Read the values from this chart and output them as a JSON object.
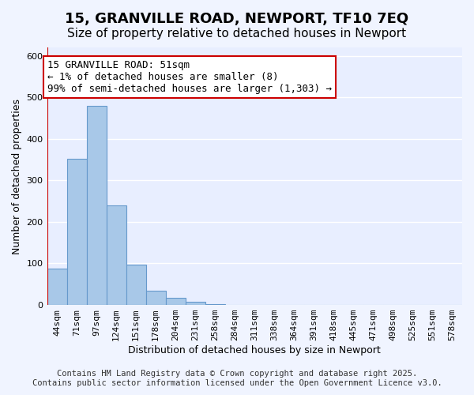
{
  "title": "15, GRANVILLE ROAD, NEWPORT, TF10 7EQ",
  "subtitle": "Size of property relative to detached houses in Newport",
  "xlabel": "Distribution of detached houses by size in Newport",
  "ylabel": "Number of detached properties",
  "bar_values": [
    88,
    352,
    480,
    239,
    97,
    35,
    18,
    7,
    2,
    1,
    0,
    0,
    0,
    0,
    0,
    0,
    0,
    0,
    0,
    0,
    0
  ],
  "bar_labels": [
    "44sqm",
    "71sqm",
    "97sqm",
    "124sqm",
    "151sqm",
    "178sqm",
    "204sqm",
    "231sqm",
    "258sqm",
    "284sqm",
    "311sqm",
    "338sqm",
    "364sqm",
    "391sqm",
    "418sqm",
    "445sqm",
    "471sqm",
    "498sqm",
    "525sqm",
    "551sqm",
    "578sqm"
  ],
  "bar_color": "#a8c8e8",
  "bar_edge_color": "#6699cc",
  "annotation_box_text": "15 GRANVILLE ROAD: 51sqm\n← 1% of detached houses are smaller (8)\n99% of semi-detached houses are larger (1,303) →",
  "annotation_box_color": "#ffffff",
  "annotation_box_edge_color": "#cc0000",
  "vline_color": "#cc0000",
  "vline_x": 0,
  "ylim": [
    0,
    620
  ],
  "footer_line1": "Contains HM Land Registry data © Crown copyright and database right 2025.",
  "footer_line2": "Contains public sector information licensed under the Open Government Licence v3.0.",
  "background_color": "#f0f4ff",
  "plot_background_color": "#e8eeff",
  "grid_color": "#ffffff",
  "title_fontsize": 13,
  "subtitle_fontsize": 11,
  "axis_label_fontsize": 9,
  "tick_fontsize": 8,
  "annotation_fontsize": 9,
  "footer_fontsize": 7.5
}
